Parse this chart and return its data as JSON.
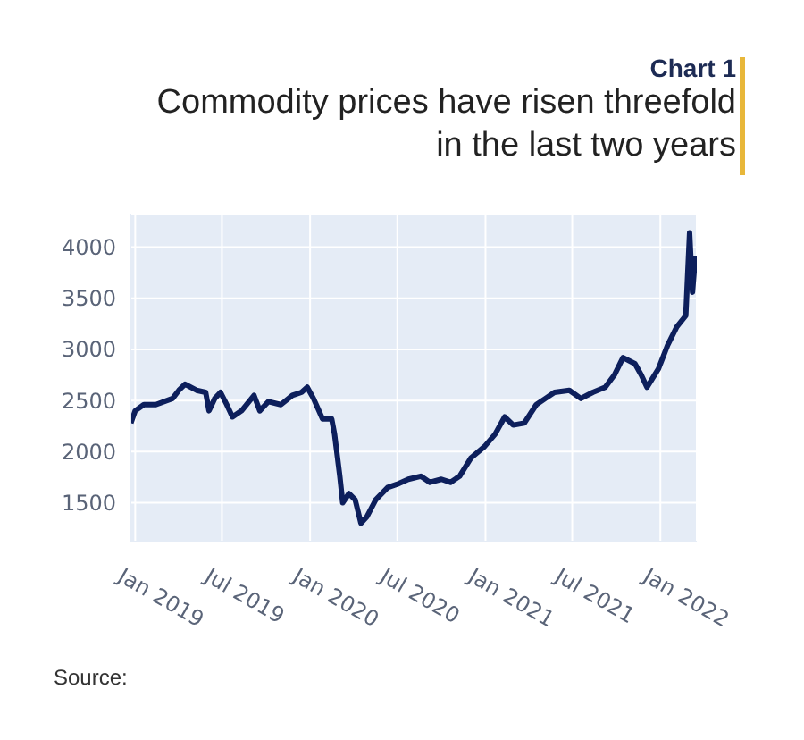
{
  "chart_data": {
    "type": "line",
    "subtitle": "Chart 1",
    "title": "Commodity prices have risen threefold\nin the last two years",
    "annotations": [
      "Source:"
    ],
    "x": [
      "2018-12-23",
      "2019-01-01",
      "2019-01-19",
      "2019-02-13",
      "2019-03-20",
      "2019-04-02",
      "2019-04-15",
      "2019-05-09",
      "2019-05-28",
      "2019-06-04",
      "2019-06-16",
      "2019-06-28",
      "2019-07-11",
      "2019-07-23",
      "2019-08-11",
      "2019-09-06",
      "2019-09-18",
      "2019-10-06",
      "2019-11-01",
      "2019-11-25",
      "2019-12-14",
      "2019-12-26",
      "2020-01-08",
      "2020-01-27",
      "2020-02-15",
      "2020-02-21",
      "2020-03-03",
      "2020-03-09",
      "2020-03-22",
      "2020-04-04",
      "2020-04-16",
      "2020-04-28",
      "2020-05-17",
      "2020-06-11",
      "2020-06-30",
      "2020-07-24",
      "2020-08-19",
      "2020-09-07",
      "2020-10-01",
      "2020-10-20",
      "2020-11-08",
      "2020-12-02",
      "2020-12-30",
      "2021-01-21",
      "2021-02-10",
      "2021-02-28",
      "2021-03-23",
      "2021-04-17",
      "2021-05-06",
      "2021-05-25",
      "2021-06-25",
      "2021-07-19",
      "2021-08-13",
      "2021-09-08",
      "2021-09-27",
      "2021-10-15",
      "2021-11-09",
      "2021-11-22",
      "2021-12-04",
      "2021-12-28",
      "2022-01-16",
      "2022-02-04",
      "2022-02-23",
      "2022-03-03",
      "2022-03-09",
      "2022-03-15"
    ],
    "series": [
      {
        "color": "#0d1f5c",
        "values": [
          2280,
          2400,
          2460,
          2460,
          2520,
          2600,
          2660,
          2600,
          2580,
          2400,
          2520,
          2580,
          2460,
          2340,
          2400,
          2550,
          2400,
          2490,
          2460,
          2550,
          2580,
          2630,
          2520,
          2320,
          2320,
          2170,
          1760,
          1500,
          1590,
          1530,
          1300,
          1360,
          1530,
          1650,
          1680,
          1730,
          1760,
          1700,
          1730,
          1700,
          1760,
          1940,
          2050,
          2170,
          2340,
          2260,
          2280,
          2460,
          2520,
          2580,
          2600,
          2520,
          2580,
          2630,
          2750,
          2920,
          2860,
          2750,
          2630,
          2810,
          3040,
          3220,
          3330,
          4140,
          3560,
          3910
        ]
      }
    ],
    "xlim": [
      "2018-12-22",
      "2022-03-18"
    ],
    "xticks": [
      {
        "value": "2019-01",
        "label": "Jan 2019"
      },
      {
        "value": "2019-07",
        "label": "Jul 2019"
      },
      {
        "value": "2020-01",
        "label": "Jan 2020"
      },
      {
        "value": "2020-07",
        "label": "Jul 2020"
      },
      {
        "value": "2021-01",
        "label": "Jan 2021"
      },
      {
        "value": "2021-07",
        "label": "Jul 2021"
      },
      {
        "value": "2022-01",
        "label": "Jan 2022"
      }
    ],
    "ylim": [
      1120,
      4320
    ],
    "yticks": [
      1500,
      2000,
      2500,
      3000,
      3500,
      4000
    ],
    "grid": true,
    "legend": false,
    "marker": "none",
    "line_style": "solid"
  }
}
